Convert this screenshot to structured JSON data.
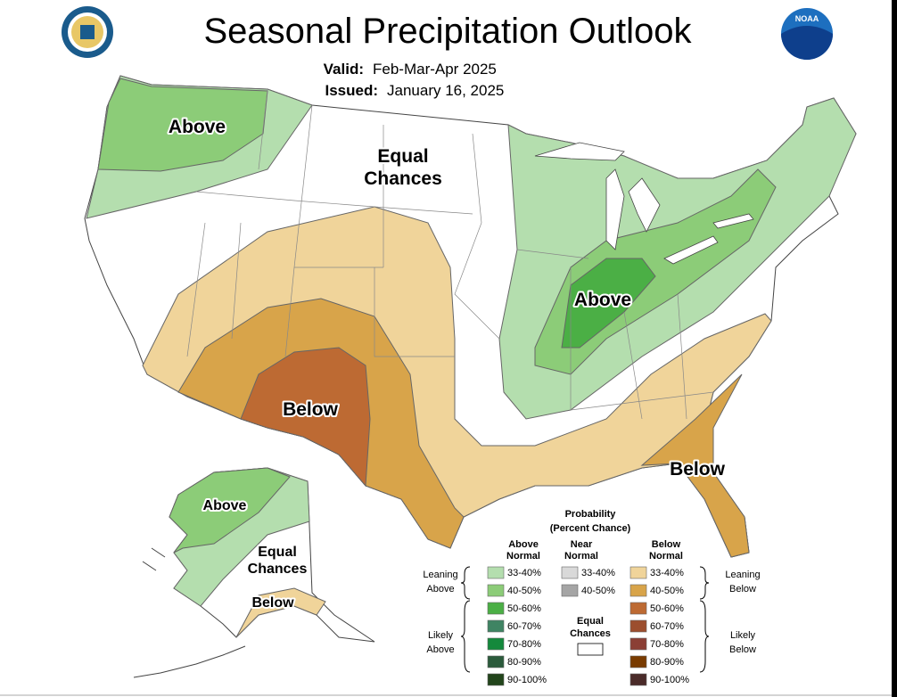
{
  "header": {
    "title": "Seasonal Precipitation Outlook",
    "valid_label": "Valid:",
    "valid_value": "Feb-Mar-Apr 2025",
    "issued_label": "Issued:",
    "issued_value": "January 16, 2025",
    "logo_text": "NOAA"
  },
  "map_labels": [
    [
      "Above"
    ],
    [
      "Equal",
      "Chances"
    ],
    [
      "Below"
    ],
    [
      "Above"
    ],
    [
      "Below"
    ],
    [
      "Above"
    ],
    [
      "Equal",
      "Chances"
    ],
    [
      "Below"
    ]
  ],
  "legend": {
    "title": [
      "Probability",
      "(Percent Chance)"
    ],
    "columns": [
      {
        "header": [
          "Above",
          "Normal"
        ],
        "swatches": [
          {
            "label": "33-40%",
            "color": "#b4deae"
          },
          {
            "label": "40-50%",
            "color": "#8ccc78"
          },
          {
            "label": "50-60%",
            "color": "#4baf45"
          },
          {
            "label": "60-70%",
            "color": "#3f8463"
          },
          {
            "label": "70-80%",
            "color": "#14893c"
          },
          {
            "label": "80-90%",
            "color": "#2b5a3b"
          },
          {
            "label": "90-100%",
            "color": "#22451b"
          }
        ]
      },
      {
        "header": [
          "Near",
          "Normal"
        ],
        "swatches": [
          {
            "label": "33-40%",
            "color": "#d9d9d9"
          },
          {
            "label": "40-50%",
            "color": "#a5a5a5"
          }
        ]
      },
      {
        "header": [
          "Below",
          "Normal"
        ],
        "swatches": [
          {
            "label": "33-40%",
            "color": "#f0d49a"
          },
          {
            "label": "40-50%",
            "color": "#d8a44a"
          },
          {
            "label": "50-60%",
            "color": "#bd6a33"
          },
          {
            "label": "60-70%",
            "color": "#9c4e2e"
          },
          {
            "label": "70-80%",
            "color": "#8b3f35"
          },
          {
            "label": "80-90%",
            "color": "#793b00"
          },
          {
            "label": "90-100%",
            "color": "#4a2b29"
          }
        ]
      }
    ],
    "groups": [
      [
        "Leaning",
        "Above"
      ],
      [
        "Leaning",
        "Below"
      ],
      [
        "Likely",
        "Above"
      ],
      [
        "Likely",
        "Below"
      ]
    ],
    "equal_chances": [
      "Equal",
      "Chances"
    ]
  }
}
